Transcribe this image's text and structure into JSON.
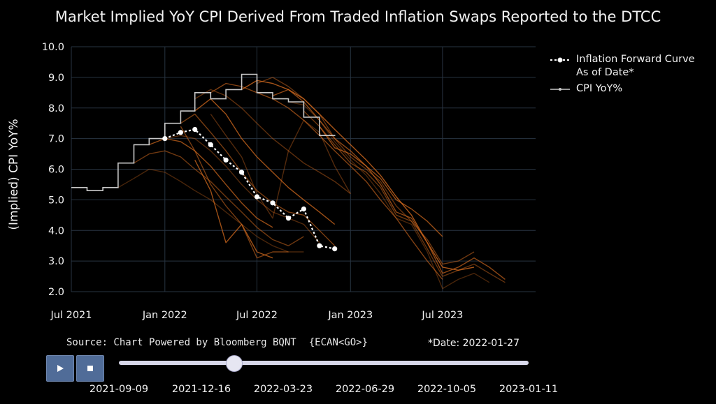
{
  "colors": {
    "background": "#000000",
    "grid": "#283442",
    "cpi_line": "#c8c8c8",
    "forward_curve": "#ffffff",
    "history_curves": "#d2691e",
    "button": "#506c98"
  },
  "chart_data": {
    "type": "line",
    "title": "Market Implied YoY CPI Derived From Traded Inflation Swaps Reported to the DTCC",
    "xlabel": "",
    "ylabel": "(Implied) CPI YoY%",
    "ylim": [
      2.0,
      10.0
    ],
    "yticks": [
      "2.0",
      "3.0",
      "4.0",
      "5.0",
      "6.0",
      "7.0",
      "8.0",
      "9.0",
      "10.0"
    ],
    "xlim": [
      "2021-07-01",
      "2023-12-31"
    ],
    "xticks": [
      {
        "date": "2021-07-01",
        "label": "Jul 2021"
      },
      {
        "date": "2022-01-01",
        "label": "Jan 2022"
      },
      {
        "date": "2022-07-01",
        "label": "Jul 2022"
      },
      {
        "date": "2023-01-01",
        "label": "Jan 2023"
      },
      {
        "date": "2023-07-01",
        "label": "Jul 2023"
      }
    ],
    "grid": true,
    "legend_position": "top-right",
    "series": [
      {
        "name": "CPI YoY%",
        "style": "step",
        "x": [
          "2021-07-01",
          "2021-08-01",
          "2021-09-01",
          "2021-10-01",
          "2021-11-01",
          "2021-12-01",
          "2022-01-01",
          "2022-02-01",
          "2022-03-01",
          "2022-04-01",
          "2022-05-01",
          "2022-06-01",
          "2022-07-01",
          "2022-08-01",
          "2022-09-01",
          "2022-10-01",
          "2022-11-01"
        ],
        "values": [
          5.4,
          5.3,
          5.4,
          6.2,
          6.8,
          7.0,
          7.5,
          7.9,
          8.5,
          8.3,
          8.6,
          9.1,
          8.5,
          8.3,
          8.2,
          7.7,
          7.1
        ]
      },
      {
        "name": "Inflation Forward Curve As of Date*",
        "style": "dotted",
        "x": [
          "2022-01-01",
          "2022-02-01",
          "2022-03-01",
          "2022-04-01",
          "2022-05-01",
          "2022-06-01",
          "2022-07-01",
          "2022-08-01",
          "2022-09-01",
          "2022-10-01",
          "2022-11-01",
          "2022-12-01"
        ],
        "values": [
          7.0,
          7.2,
          7.3,
          6.8,
          6.3,
          5.9,
          5.1,
          4.9,
          4.4,
          4.7,
          3.5,
          3.4
        ]
      }
    ],
    "history_curves": [
      {
        "x": [
          "2021-10-01",
          "2021-11-01",
          "2021-12-01",
          "2022-01-01",
          "2022-02-01",
          "2022-03-01",
          "2022-04-01",
          "2022-05-01",
          "2022-06-01",
          "2022-07-01",
          "2022-08-01",
          "2022-09-01",
          "2022-10-01"
        ],
        "values": [
          5.4,
          5.7,
          6.0,
          5.9,
          5.6,
          5.3,
          5.0,
          4.6,
          4.2,
          3.8,
          3.5,
          3.3,
          3.3
        ]
      },
      {
        "x": [
          "2021-11-01",
          "2021-12-01",
          "2022-01-01",
          "2022-02-01",
          "2022-03-01",
          "2022-04-01",
          "2022-05-01",
          "2022-06-01",
          "2022-07-01",
          "2022-08-01",
          "2022-09-01",
          "2022-10-01"
        ],
        "values": [
          6.2,
          6.5,
          6.6,
          6.4,
          6.0,
          5.6,
          5.1,
          4.6,
          4.1,
          3.7,
          3.5,
          3.8
        ]
      },
      {
        "x": [
          "2021-12-01",
          "2022-01-01",
          "2022-02-01",
          "2022-03-01",
          "2022-04-01",
          "2022-05-01",
          "2022-06-01",
          "2022-07-01",
          "2022-08-01"
        ],
        "values": [
          6.8,
          7.0,
          6.9,
          6.6,
          6.1,
          5.5,
          4.9,
          4.4,
          4.1
        ]
      },
      {
        "x": [
          "2022-01-01",
          "2022-02-01",
          "2022-03-01",
          "2022-04-01",
          "2022-05-01",
          "2022-06-01",
          "2022-07-01",
          "2022-08-01",
          "2022-09-01",
          "2022-10-01",
          "2022-11-01"
        ],
        "values": [
          7.0,
          7.1,
          7.0,
          6.6,
          6.1,
          5.5,
          5.0,
          4.6,
          4.4,
          4.2,
          3.6
        ]
      },
      {
        "x": [
          "2022-02-01",
          "2022-03-01",
          "2022-04-01",
          "2022-05-01",
          "2022-06-01",
          "2022-07-01",
          "2022-08-01",
          "2022-09-01",
          "2022-10-01",
          "2022-11-01",
          "2022-12-01"
        ],
        "values": [
          7.5,
          7.8,
          7.2,
          6.6,
          5.9,
          5.3,
          4.9,
          4.6,
          4.5,
          4.0,
          3.5
        ]
      },
      {
        "x": [
          "2022-03-01",
          "2022-04-01",
          "2022-05-01",
          "2022-06-01",
          "2022-07-01",
          "2022-08-01",
          "2022-09-01",
          "2022-10-01",
          "2022-11-01",
          "2022-12-01"
        ],
        "values": [
          7.9,
          8.3,
          7.8,
          7.0,
          6.4,
          5.9,
          5.4,
          5.0,
          4.6,
          4.2
        ]
      },
      {
        "x": [
          "2022-03-01",
          "2022-04-01",
          "2022-05-01",
          "2022-06-01",
          "2022-07-01",
          "2022-08-01",
          "2022-09-01",
          "2022-10-01",
          "2022-11-01",
          "2022-12-01",
          "2023-01-01"
        ],
        "values": [
          8.3,
          8.6,
          8.4,
          8.0,
          7.5,
          7.0,
          6.6,
          6.2,
          5.9,
          5.6,
          5.2
        ]
      },
      {
        "x": [
          "2022-04-01",
          "2022-05-01",
          "2022-06-01",
          "2022-07-01",
          "2022-08-01",
          "2022-09-01",
          "2022-10-01",
          "2022-11-01",
          "2022-12-01",
          "2023-01-01",
          "2023-02-01",
          "2023-03-01",
          "2023-04-01",
          "2023-05-01",
          "2023-06-01",
          "2023-07-01"
        ],
        "values": [
          8.5,
          8.8,
          8.7,
          8.5,
          8.3,
          8.0,
          7.6,
          7.1,
          6.6,
          6.1,
          5.6,
          5.0,
          4.4,
          3.7,
          3.0,
          2.4
        ]
      },
      {
        "x": [
          "2022-06-01",
          "2022-07-01",
          "2022-08-01",
          "2022-09-01",
          "2022-10-01",
          "2022-11-01",
          "2022-12-01",
          "2023-01-01",
          "2023-02-01",
          "2023-03-01",
          "2023-04-01",
          "2023-05-01",
          "2023-06-01",
          "2023-07-01",
          "2023-08-01",
          "2023-09-01"
        ],
        "values": [
          8.6,
          8.9,
          8.8,
          8.6,
          8.3,
          7.8,
          7.3,
          6.8,
          6.3,
          5.8,
          5.1,
          4.5,
          3.6,
          2.8,
          2.7,
          2.8
        ]
      },
      {
        "x": [
          "2022-07-01",
          "2022-08-01",
          "2022-09-01",
          "2022-10-01",
          "2022-11-01",
          "2022-12-01",
          "2023-01-01",
          "2023-02-01",
          "2023-03-01",
          "2023-04-01",
          "2023-05-01",
          "2023-06-01",
          "2023-07-01",
          "2023-08-01",
          "2023-09-01",
          "2023-10-01",
          "2023-11-01"
        ],
        "values": [
          8.8,
          9.0,
          8.7,
          8.3,
          7.8,
          7.0,
          6.4,
          6.0,
          5.6,
          4.8,
          4.3,
          3.4,
          2.5,
          2.7,
          2.9,
          2.6,
          2.3
        ]
      },
      {
        "x": [
          "2022-08-01",
          "2022-09-01",
          "2022-10-01",
          "2022-11-01",
          "2022-12-01",
          "2023-01-01",
          "2023-02-01",
          "2023-03-01",
          "2023-04-01",
          "2023-05-01",
          "2023-06-01",
          "2023-07-01",
          "2023-08-01",
          "2023-09-01",
          "2023-10-01",
          "2023-11-01"
        ],
        "values": [
          8.4,
          8.6,
          8.2,
          7.6,
          7.0,
          6.6,
          6.1,
          5.5,
          4.6,
          4.4,
          3.6,
          2.6,
          2.8,
          3.1,
          2.8,
          2.4
        ]
      },
      {
        "x": [
          "2022-09-01",
          "2022-10-01",
          "2022-11-01",
          "2022-12-01",
          "2023-01-01",
          "2023-02-01",
          "2023-03-01",
          "2023-04-01",
          "2023-05-01",
          "2023-06-01",
          "2023-07-01",
          "2023-08-01",
          "2023-09-01",
          "2023-10-01"
        ],
        "values": [
          8.2,
          8.1,
          7.6,
          6.9,
          6.3,
          5.8,
          5.2,
          4.4,
          4.2,
          3.3,
          2.1,
          2.4,
          2.6,
          2.3
        ]
      },
      {
        "x": [
          "2022-10-01",
          "2022-11-01",
          "2022-12-01",
          "2023-01-01",
          "2023-02-01",
          "2023-03-01",
          "2023-04-01",
          "2023-05-01",
          "2023-06-01",
          "2023-07-01",
          "2023-08-01",
          "2023-09-01"
        ],
        "values": [
          7.9,
          7.4,
          6.8,
          6.2,
          5.9,
          5.4,
          4.5,
          4.3,
          3.7,
          2.9,
          3.0,
          3.3
        ]
      },
      {
        "x": [
          "2022-11-01",
          "2022-12-01",
          "2023-01-01",
          "2023-02-01",
          "2023-03-01",
          "2023-04-01",
          "2023-05-01",
          "2023-06-01",
          "2023-07-01"
        ],
        "values": [
          7.4,
          6.7,
          6.5,
          6.1,
          5.7,
          5.0,
          4.7,
          4.3,
          3.8
        ]
      },
      {
        "x": [
          "2022-04-01",
          "2022-05-01",
          "2022-06-01",
          "2022-07-01",
          "2022-08-01",
          "2022-09-01",
          "2022-10-01",
          "2022-11-01",
          "2022-12-01",
          "2023-01-01"
        ],
        "values": [
          7.8,
          7.1,
          6.4,
          5.2,
          4.4,
          6.6,
          7.6,
          7.2,
          6.1,
          5.2
        ]
      },
      {
        "x": [
          "2022-02-01",
          "2022-03-01",
          "2022-04-01",
          "2022-05-01",
          "2022-06-01",
          "2022-07-01",
          "2022-08-01",
          "2022-09-01"
        ],
        "values": [
          7.4,
          6.6,
          5.5,
          4.8,
          4.2,
          3.1,
          3.3,
          3.3
        ]
      },
      {
        "x": [
          "2022-03-01",
          "2022-04-01",
          "2022-05-01",
          "2022-06-01",
          "2022-07-01",
          "2022-08-01"
        ],
        "values": [
          6.3,
          5.3,
          3.6,
          4.2,
          3.3,
          3.1
        ]
      }
    ]
  },
  "legend": [
    {
      "label_line1": "Inflation Forward Curve",
      "label_line2": "As of Date*"
    },
    {
      "label_line1": "CPI YoY%"
    }
  ],
  "source": {
    "text": "Source: Chart Powered by Bloomberg BQNT",
    "code": "{ECAN<GO>}"
  },
  "date_note": "*Date: 2022-01-27",
  "controls": {
    "play_icon": "play-icon",
    "stop_icon": "stop-icon"
  },
  "slider": {
    "position_fraction": 0.28,
    "ticks": [
      "2021-09-09",
      "2021-12-16",
      "2022-03-23",
      "2022-06-29",
      "2022-10-05",
      "2023-01-11"
    ]
  }
}
